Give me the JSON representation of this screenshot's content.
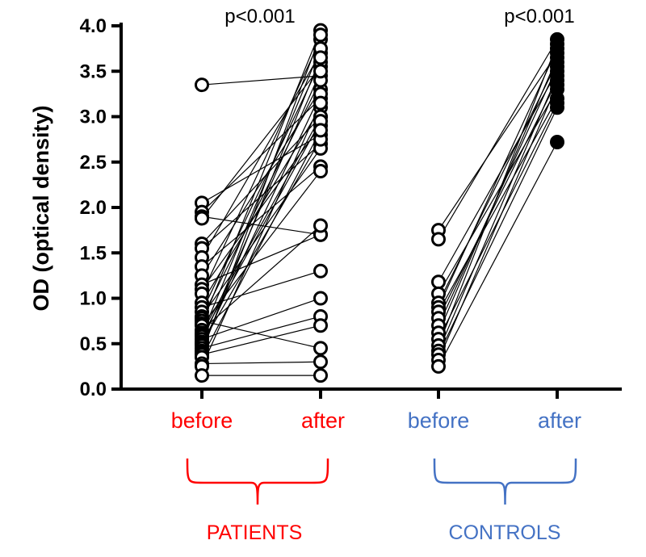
{
  "chart_data": {
    "type": "scatter",
    "ylabel": "OD (optical density)",
    "ylim": [
      0,
      4
    ],
    "yticks": [
      "0.0",
      "0.5",
      "1.0",
      "1.5",
      "2.0",
      "2.5",
      "3.0",
      "3.5",
      "4.0"
    ],
    "groups": [
      {
        "label": "PATIENTS",
        "color": "#ff0000",
        "before_label": "before",
        "after_label": "after",
        "pvalue": "p<0.001",
        "marker": "open",
        "pairs": [
          [
            3.35,
            3.45
          ],
          [
            2.05,
            2.8
          ],
          [
            1.95,
            3.2
          ],
          [
            1.9,
            1.7
          ],
          [
            1.88,
            3.55
          ],
          [
            1.6,
            3.0
          ],
          [
            1.55,
            2.7
          ],
          [
            1.45,
            3.7
          ],
          [
            1.35,
            2.45
          ],
          [
            1.25,
            3.3
          ],
          [
            1.15,
            1.7
          ],
          [
            1.1,
            2.9
          ],
          [
            1.05,
            3.85
          ],
          [
            0.95,
            3.1
          ],
          [
            0.9,
            1.3
          ],
          [
            0.85,
            3.6
          ],
          [
            0.8,
            2.65
          ],
          [
            0.78,
            3.4
          ],
          [
            0.75,
            0.45
          ],
          [
            0.72,
            3.95
          ],
          [
            0.7,
            2.4
          ],
          [
            0.65,
            1.8
          ],
          [
            0.62,
            3.0
          ],
          [
            0.6,
            3.75
          ],
          [
            0.58,
            2.95
          ],
          [
            0.55,
            1.0
          ],
          [
            0.52,
            3.5
          ],
          [
            0.5,
            2.75
          ],
          [
            0.48,
            3.25
          ],
          [
            0.45,
            0.8
          ],
          [
            0.42,
            3.65
          ],
          [
            0.4,
            3.9
          ],
          [
            0.38,
            0.7
          ],
          [
            0.35,
            2.85
          ],
          [
            0.28,
            0.3
          ],
          [
            0.25,
            3.15
          ],
          [
            0.15,
            0.15
          ]
        ]
      },
      {
        "label": "CONTROLS",
        "color": "#4472c4",
        "before_label": "before",
        "after_label": "after",
        "pvalue": "p<0.001",
        "marker": "filled",
        "pairs": [
          [
            1.75,
            3.7
          ],
          [
            1.65,
            3.85
          ],
          [
            1.18,
            3.5
          ],
          [
            1.05,
            3.3
          ],
          [
            0.95,
            3.6
          ],
          [
            0.9,
            3.75
          ],
          [
            0.85,
            3.2
          ],
          [
            0.78,
            3.4
          ],
          [
            0.7,
            3.55
          ],
          [
            0.62,
            3.65
          ],
          [
            0.55,
            3.15
          ],
          [
            0.48,
            3.8
          ],
          [
            0.42,
            3.45
          ],
          [
            0.38,
            3.1
          ],
          [
            0.32,
            3.35
          ],
          [
            0.25,
            2.72
          ]
        ]
      }
    ]
  }
}
